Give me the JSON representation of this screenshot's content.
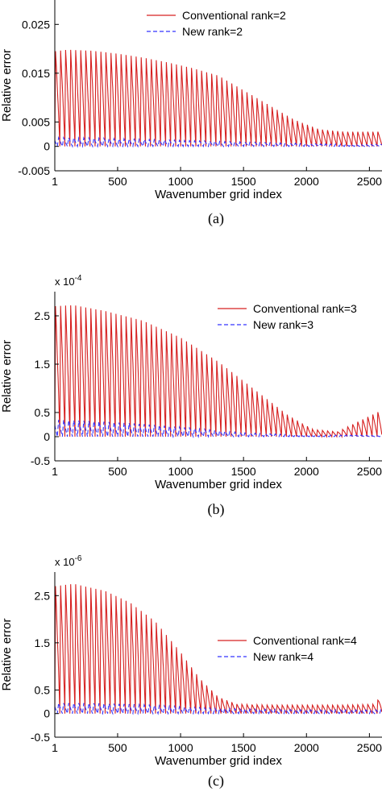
{
  "chart_data": [
    {
      "type": "line",
      "panel": "(a)",
      "caption": "(a)",
      "multiplier": "",
      "xlabel": "Wavenumber grid index",
      "ylabel": "Relative error",
      "xlim": [
        1,
        2600
      ],
      "ylim": [
        -0.005,
        0.03
      ],
      "xticks": [
        "1",
        "500",
        "1000",
        "1500",
        "2000",
        "2500"
      ],
      "yticks": [
        {
          "v": 0.025,
          "label": "0.025"
        },
        {
          "v": 0.015,
          "label": "0.015"
        },
        {
          "v": 0.005,
          "label": "0.005"
        },
        {
          "v": 0,
          "label": "0"
        },
        {
          "v": -0.005,
          "label": "-0.005"
        }
      ],
      "legend": "top-right",
      "series": [
        {
          "name": "Conventional rank=2",
          "color": "#d62020",
          "style": "solid",
          "envelope_x": [
            1,
            100,
            300,
            500,
            700,
            900,
            1100,
            1300,
            1500,
            1700,
            1900,
            2100,
            2300,
            2600
          ],
          "envelope_y": [
            0.0195,
            0.0198,
            0.0196,
            0.019,
            0.0182,
            0.0172,
            0.016,
            0.0145,
            0.0115,
            0.0085,
            0.0055,
            0.0035,
            0.003,
            0.003
          ]
        },
        {
          "name": "New rank=2",
          "color": "#3535ff",
          "style": "dashed",
          "envelope_x": [
            1,
            300,
            600,
            900,
            1200,
            1500,
            1800,
            2100,
            2600
          ],
          "envelope_y": [
            0.0018,
            0.0017,
            0.0015,
            0.0013,
            0.0011,
            0.0009,
            0.0007,
            0.0005,
            0.0004
          ]
        }
      ]
    },
    {
      "type": "line",
      "panel": "(b)",
      "caption": "(b)",
      "multiplier": "x 10",
      "multiplier_exp": "-4",
      "xlabel": "Wavenumber grid index",
      "ylabel": "Relative error",
      "xlim": [
        1,
        2600
      ],
      "ylim": [
        -0.5,
        3
      ],
      "xticks": [
        "1",
        "500",
        "1000",
        "1500",
        "2000",
        "2500"
      ],
      "yticks": [
        {
          "v": 2.5,
          "label": "2.5"
        },
        {
          "v": 1.5,
          "label": "1.5"
        },
        {
          "v": 0.5,
          "label": "0.5"
        },
        {
          "v": 0,
          "label": "0"
        },
        {
          "v": -0.5,
          "label": "-0.5"
        }
      ],
      "legend": "top-right",
      "series": [
        {
          "name": "Conventional rank=3",
          "color": "#d62020",
          "style": "solid",
          "envelope_x": [
            1,
            150,
            400,
            700,
            1000,
            1300,
            1600,
            1850,
            2050,
            2250,
            2400,
            2600
          ],
          "envelope_y": [
            2.7,
            2.72,
            2.6,
            2.4,
            2.05,
            1.55,
            0.95,
            0.45,
            0.15,
            0.1,
            0.3,
            0.55
          ]
        },
        {
          "name": "New rank=3",
          "color": "#3535ff",
          "style": "dashed",
          "envelope_x": [
            1,
            300,
            600,
            900,
            1200,
            1500,
            1800,
            2100,
            2600
          ],
          "envelope_y": [
            0.35,
            0.32,
            0.28,
            0.22,
            0.15,
            0.08,
            0.05,
            0.03,
            0.03
          ]
        }
      ]
    },
    {
      "type": "line",
      "panel": "(c)",
      "caption": "(c)",
      "multiplier": "x 10",
      "multiplier_exp": "-6",
      "xlabel": "Wavenumber grid index",
      "ylabel": "Relative error",
      "xlim": [
        1,
        2600
      ],
      "ylim": [
        -0.5,
        3
      ],
      "xticks": [
        "1",
        "500",
        "1000",
        "1500",
        "2000",
        "2500"
      ],
      "yticks": [
        {
          "v": 2.5,
          "label": "2.5"
        },
        {
          "v": 1.5,
          "label": "1.5"
        },
        {
          "v": 0.5,
          "label": "0.5"
        },
        {
          "v": 0,
          "label": "0"
        },
        {
          "v": -0.5,
          "label": "-0.5"
        }
      ],
      "legend": "middle-right",
      "series": [
        {
          "name": "Conventional rank=4",
          "color": "#d62020",
          "style": "solid",
          "envelope_x": [
            1,
            150,
            400,
            600,
            800,
            1000,
            1150,
            1300,
            1450,
            1700,
            2000,
            2300,
            2550,
            2600
          ],
          "envelope_y": [
            2.7,
            2.75,
            2.6,
            2.35,
            1.95,
            1.3,
            0.75,
            0.35,
            0.2,
            0.18,
            0.18,
            0.18,
            0.2,
            0.45
          ]
        },
        {
          "name": "New rank=4",
          "color": "#3535ff",
          "style": "dashed",
          "envelope_x": [
            1,
            300,
            600,
            900,
            1200,
            1500,
            1800,
            2100,
            2600
          ],
          "envelope_y": [
            0.22,
            0.22,
            0.2,
            0.16,
            0.12,
            0.1,
            0.09,
            0.08,
            0.08
          ]
        }
      ]
    }
  ]
}
